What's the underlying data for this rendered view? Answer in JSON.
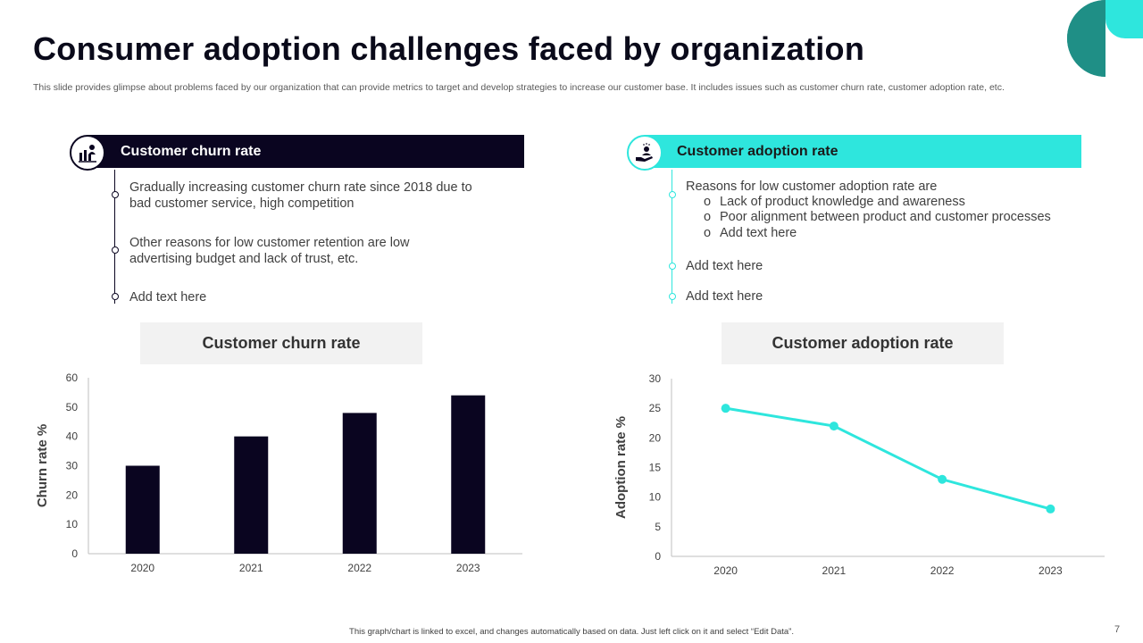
{
  "slide": {
    "title": "Consumer adoption challenges faced by organization",
    "subtitle": "This slide provides glimpse about problems faced by our organization that can provide metrics to target and develop strategies to increase our customer base. It includes issues such as customer churn rate, customer adoption rate, etc.",
    "footer": "This graph/chart is linked to excel, and changes automatically based on data. Just left click on it and select “Edit Data”.",
    "page_number": "7"
  },
  "colors": {
    "dark": "#0a0520",
    "accent": "#2ee6dd",
    "teal_dark": "#1f8f86"
  },
  "left_panel": {
    "header": "Customer churn rate",
    "icon": "chart-person-icon",
    "bullets": [
      "Gradually increasing customer churn rate since 2018 due to bad customer service, high competition",
      "Other reasons for low customer retention are low advertising budget and lack of trust, etc.",
      "Add text here"
    ]
  },
  "right_panel": {
    "header": "Customer adoption rate",
    "icon": "hand-person-icon",
    "bullets": [
      {
        "text": "Reasons for low customer adoption rate are",
        "subs": [
          "Lack of product knowledge and awareness",
          "Poor alignment between product and customer processes",
          "Add text here"
        ]
      },
      {
        "text": "Add text here",
        "subs": []
      },
      {
        "text": "Add text here",
        "subs": []
      }
    ]
  },
  "chart_data": [
    {
      "type": "bar",
      "title": "Customer churn rate",
      "categories": [
        "2020",
        "2021",
        "2022",
        "2023"
      ],
      "values": [
        30,
        40,
        48,
        54
      ],
      "xlabel": "",
      "ylabel": "Churn rate %",
      "ylim": [
        0,
        60
      ],
      "yticks": [
        0,
        10,
        20,
        30,
        40,
        50,
        60
      ],
      "color": "#0a0520",
      "grid": false
    },
    {
      "type": "line",
      "title": "Customer adoption rate",
      "categories": [
        "2020",
        "2021",
        "2022",
        "2023"
      ],
      "values": [
        25,
        22,
        13,
        8
      ],
      "xlabel": "",
      "ylabel": "Adoption rate %",
      "ylim": [
        0,
        30
      ],
      "yticks": [
        0,
        5,
        10,
        15,
        20,
        25,
        30
      ],
      "color": "#2ee6dd",
      "grid": false
    }
  ]
}
